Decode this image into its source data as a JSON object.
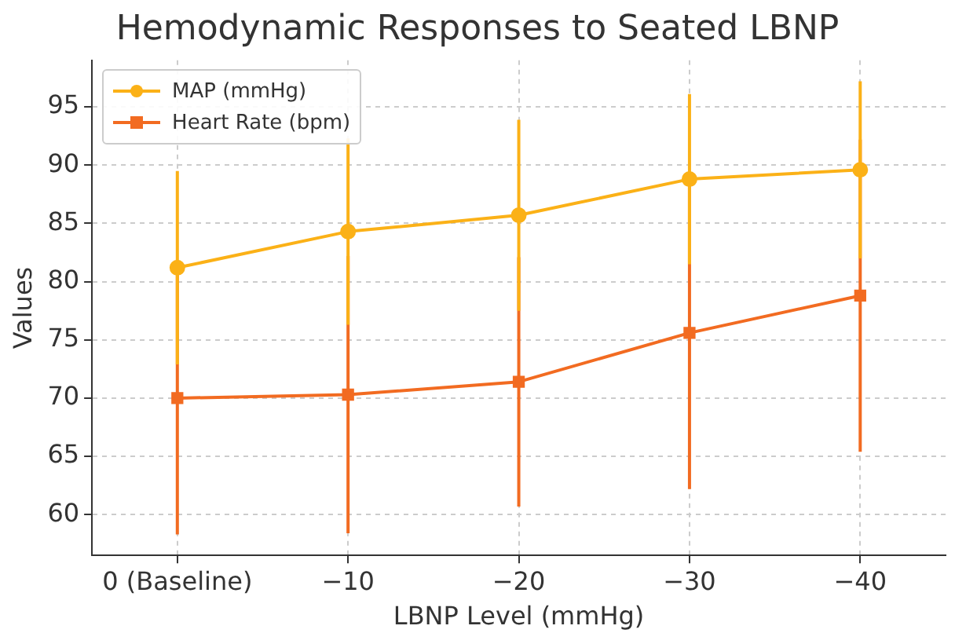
{
  "chart_data": {
    "type": "line",
    "title": "Hemodynamic Responses to Seated LBNP",
    "xlabel": "LBNP Level (mmHg)",
    "ylabel": "Values",
    "categories": [
      "0 (Baseline)",
      "−10",
      "−20",
      "−30",
      "−40"
    ],
    "series": [
      {
        "name": "MAP (mmHg)",
        "color": "#fbb117",
        "marker": "circle",
        "values": [
          81.2,
          84.3,
          85.7,
          88.8,
          89.6
        ],
        "errors": [
          8.3,
          8,
          8.2,
          7.3,
          7.6
        ]
      },
      {
        "name": "Heart Rate (bpm)",
        "color": "#f26b21",
        "marker": "square",
        "values": [
          70.0,
          70.3,
          71.4,
          75.6,
          78.8
        ],
        "errors": [
          11.7,
          11.9,
          10.7,
          13.4,
          13.4
        ]
      }
    ],
    "ylim": [
      56.5,
      99
    ],
    "yticks": [
      60,
      65,
      70,
      75,
      80,
      85,
      90,
      95
    ],
    "grid": true,
    "legend": "top left",
    "line_style": "solid"
  }
}
